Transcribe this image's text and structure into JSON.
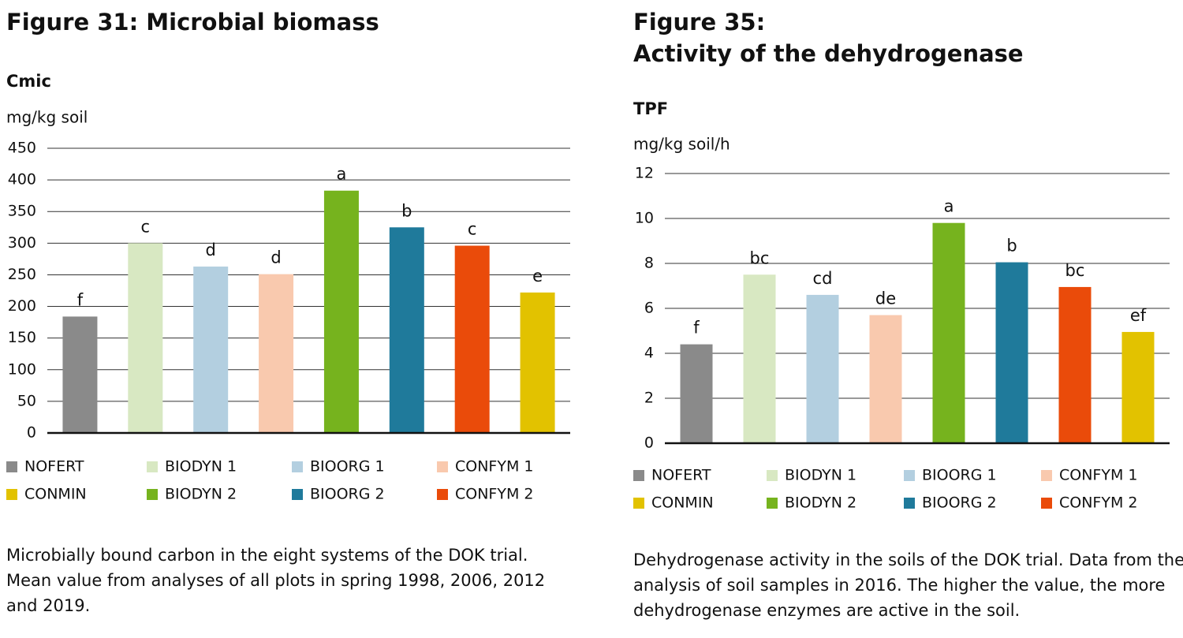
{
  "chart_data": [
    {
      "type": "bar",
      "title": "Figure 31:  Microbial biomass",
      "subtitle": "Cmic",
      "y_label": "mg/kg soil",
      "categories": [
        "NOFERT",
        "BIODYN 1",
        "BIOORG 1",
        "CONFYM 1",
        "BIODYN 2",
        "BIOORG 2",
        "CONFYM 2",
        "CONMIN"
      ],
      "values": [
        184,
        300,
        263,
        251,
        383,
        325,
        296,
        222
      ],
      "annotations": [
        "f",
        "c",
        "d",
        "d",
        "a",
        "b",
        "c",
        "e"
      ],
      "colors": [
        "#8a8a8a",
        "#d8e8c2",
        "#b3cfe0",
        "#f9c9ae",
        "#76b31e",
        "#1f7a9b",
        "#ea4b0a",
        "#e2c200"
      ],
      "ylim": [
        0,
        450
      ],
      "yticks": [
        0,
        50,
        100,
        150,
        200,
        250,
        300,
        350,
        400,
        450
      ],
      "grid": true,
      "caption": [
        "Microbially bound carbon in the eight systems of the DOK trial.",
        "Mean value from analyses of all plots in spring 1998, 2006, 2012",
        "and 2019."
      ]
    },
    {
      "type": "bar",
      "title": [
        "Figure 35:",
        "Activity of the dehydrogenase"
      ],
      "subtitle": "TPF",
      "y_label": "mg/kg soil/h",
      "categories": [
        "NOFERT",
        "BIODYN 1",
        "BIOORG 1",
        "CONFYM 1",
        "BIODYN 2",
        "BIOORG 2",
        "CONFYM 2",
        "CONMIN"
      ],
      "values": [
        4.4,
        7.5,
        6.6,
        5.7,
        9.8,
        8.05,
        6.95,
        4.95
      ],
      "annotations": [
        "f",
        "bc",
        "cd",
        "de",
        "a",
        "b",
        "bc",
        "ef"
      ],
      "colors": [
        "#8a8a8a",
        "#d8e8c2",
        "#b3cfe0",
        "#f9c9ae",
        "#76b31e",
        "#1f7a9b",
        "#ea4b0a",
        "#e2c200"
      ],
      "ylim": [
        0,
        12
      ],
      "yticks": [
        0,
        2,
        4,
        6,
        8,
        10,
        12
      ],
      "grid": true,
      "caption": [
        "Dehydrogenase activity in the soils of the DOK trial. Data from the",
        "analysis of soil samples in 2016. The higher the value, the more",
        "dehydrogenase enzymes are active in the soil."
      ]
    }
  ]
}
